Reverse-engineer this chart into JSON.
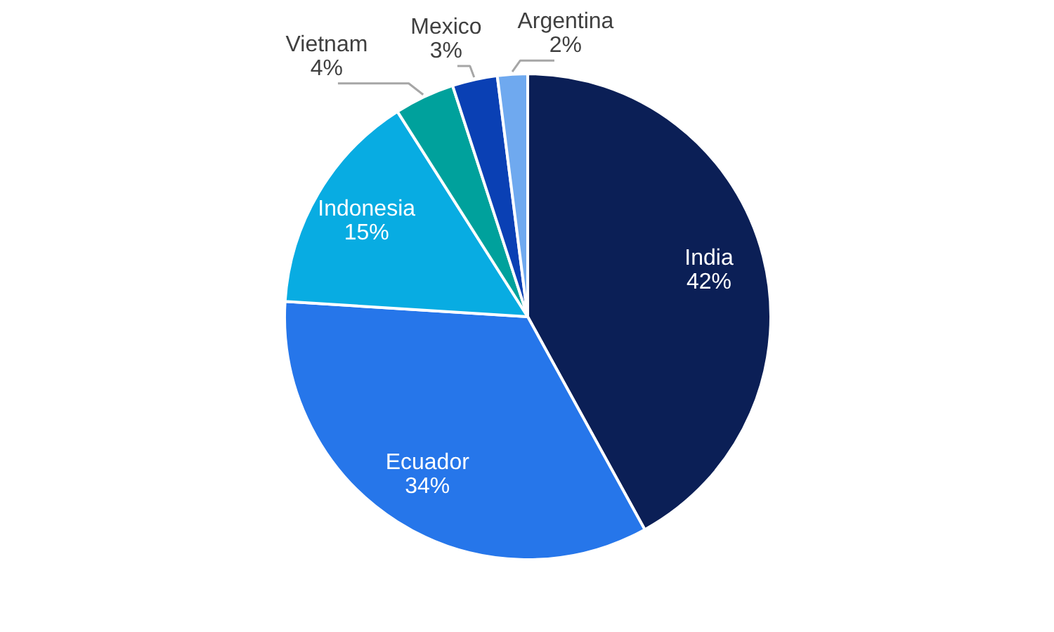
{
  "chart_data": {
    "type": "pie",
    "categories": [
      "India",
      "Ecuador",
      "Indonesia",
      "Vietnam",
      "Mexico",
      "Argentina"
    ],
    "values": [
      42,
      34,
      15,
      4,
      3,
      2
    ],
    "colors": [
      "#0b1f56",
      "#2676ea",
      "#08ace2",
      "#00a19c",
      "#0a40b4",
      "#6fa9ef"
    ],
    "value_labels": [
      "42%",
      "34%",
      "15%",
      "4%",
      "3%",
      "2%"
    ]
  }
}
